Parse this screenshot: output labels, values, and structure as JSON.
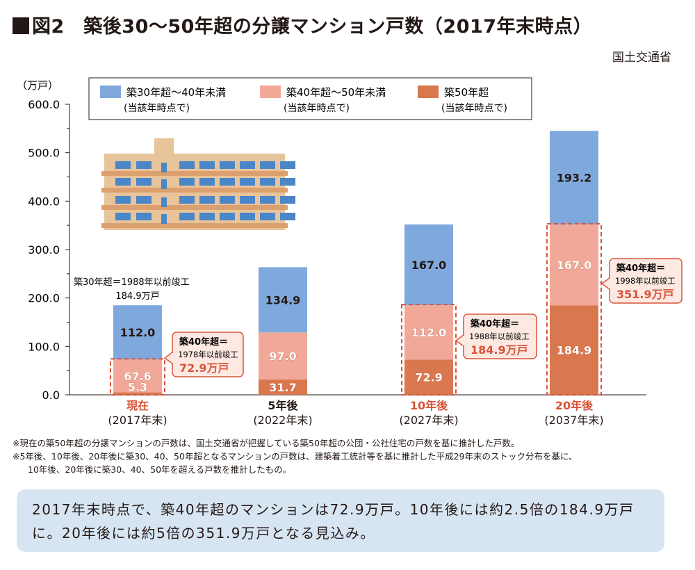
{
  "title": "図2　築後30〜50年超の分譲マンション戸数（2017年末時点）",
  "source": "国土交通省",
  "chart_data": {
    "type": "bar",
    "stacked": true,
    "ylabel": "（万戸）",
    "ylim": [
      0,
      600
    ],
    "yticks": [
      "0.0",
      "100.0",
      "200.0",
      "300.0",
      "400.0",
      "500.0",
      "600.0"
    ],
    "categories": [
      {
        "label": "現在",
        "sub": "(2017年末)",
        "highlight": true
      },
      {
        "label": "5年後",
        "sub": "(2022年末)",
        "highlight": false
      },
      {
        "label": "10年後",
        "sub": "(2027年末)",
        "highlight": true
      },
      {
        "label": "20年後",
        "sub": "(2037年末)",
        "highlight": true
      }
    ],
    "series": [
      {
        "name": "築50年超",
        "sub": "(当該年時点で)",
        "color": "#d9774e",
        "values": [
          5.3,
          31.7,
          72.9,
          184.9
        ],
        "labels": [
          "5.3",
          "31.7",
          "72.9",
          "184.9"
        ]
      },
      {
        "name": "築40年超〜50年未満",
        "sub": "(当該年時点で)",
        "color": "#f2a899",
        "values": [
          67.6,
          97.0,
          112.0,
          167.0
        ],
        "labels": [
          "67.6",
          "97.0",
          "112.0",
          "167.0"
        ]
      },
      {
        "name": "築30年超〜40年未満",
        "sub": "(当該年時点で)",
        "color": "#7fa9dc",
        "values": [
          112.0,
          134.9,
          167.0,
          193.2
        ],
        "labels": [
          "112.0",
          "134.9",
          "167.0",
          "193.2"
        ]
      }
    ],
    "legend_order": [
      2,
      1,
      0
    ],
    "legend_position": "top",
    "annotations": [
      {
        "lines": [
          "築40年超＝",
          "1978年以前竣工"
        ],
        "value": "72.9万戸",
        "target": 0
      },
      {
        "lines": [
          "築40年超＝",
          "1988年以前竣工"
        ],
        "value": "184.9万戸",
        "target": 2
      },
      {
        "lines": [
          "築40年超＝",
          "1998年以前竣工"
        ],
        "value": "351.9万戸",
        "target": 3
      }
    ],
    "note_2017": {
      "line1": "築30年超＝1988年以前竣工",
      "line2": "184.9万戸"
    }
  },
  "notes": [
    "※現在の築50年超の分譲マンションの戸数は、国土交通省が把握している築50年超の公団・公社住宅の戸数を基に推計した戸数。",
    "※5年後、10年後、20年後に築30、40、50年超となるマンションの戸数は、建築着工統計等を基に推計した平成29年末のストック分布を基に、",
    "10年後、20年後に築30、40、50年を超える戸数を推計したもの。"
  ],
  "summary": "2017年末時点で、築40年超のマンションは72.9万戸。10年後には約2.5倍の184.9万戸に。20年後には約5倍の351.9万戸となる見込み。",
  "colors": {
    "accent": "#d9543a",
    "summary_bg": "#d7e5f3",
    "building": "#e7c49a"
  }
}
